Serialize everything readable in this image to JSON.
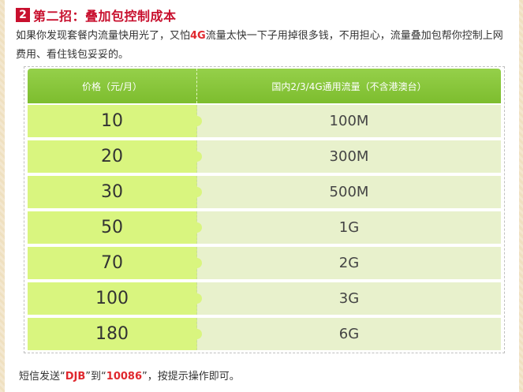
{
  "heading": {
    "badge": "2",
    "title": "第二招：叠加包控制成本"
  },
  "description": {
    "part1": "如果你发现套餐内流量快用光了，又怕",
    "highlight": "4G",
    "part2": "流量太快一下子用掉很多钱，不用担心，流量叠加包帮你控制上网费用、看住钱包妥妥的。"
  },
  "table": {
    "headers": {
      "price": "价格（元/月）",
      "flow": "国内2/3/4G通用流量（不含港澳台）"
    },
    "rows": [
      {
        "price": "10",
        "flow": "100M"
      },
      {
        "price": "20",
        "flow": "300M"
      },
      {
        "price": "30",
        "flow": "500M"
      },
      {
        "price": "50",
        "flow": "1G"
      },
      {
        "price": "70",
        "flow": "2G"
      },
      {
        "price": "100",
        "flow": "3G"
      },
      {
        "price": "180",
        "flow": "6G"
      }
    ]
  },
  "footer": {
    "prefix": "短信发送“",
    "code": "DJB",
    "mid": "”到“",
    "number": "10086",
    "suffix": "”，按提示操作即可。"
  }
}
